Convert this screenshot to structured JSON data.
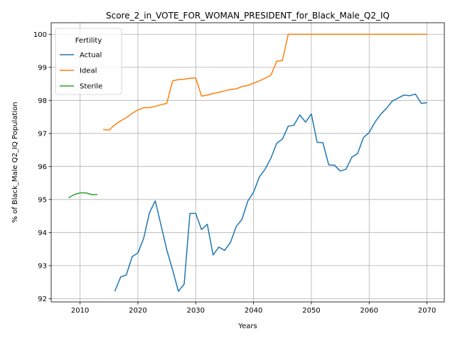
{
  "chart_data": {
    "type": "line",
    "title": "Score_2_in_VOTE_FOR_WOMAN_PRESIDENT_for_Black_Male_Q2_IQ",
    "xlabel": "Years",
    "ylabel": "% of Black_Male Q2_IQ Population",
    "xlim": [
      2005,
      2073
    ],
    "ylim": [
      91.9,
      100.35
    ],
    "xticks": [
      2010,
      2020,
      2030,
      2040,
      2050,
      2060,
      2070
    ],
    "yticks": [
      92,
      93,
      94,
      95,
      96,
      97,
      98,
      99,
      100
    ],
    "grid": true,
    "legend": {
      "title": "Fertility",
      "placement": "top-left"
    },
    "series": [
      {
        "name": "Actual",
        "color": "#1f77b4",
        "x": [
          2016,
          2017,
          2018,
          2019,
          2020,
          2021,
          2022,
          2023,
          2024,
          2025,
          2026,
          2027,
          2028,
          2029,
          2030,
          2031,
          2032,
          2033,
          2034,
          2035,
          2036,
          2037,
          2038,
          2039,
          2040,
          2041,
          2042,
          2043,
          2044,
          2045,
          2046,
          2047,
          2048,
          2049,
          2050,
          2051,
          2052,
          2053,
          2054,
          2055,
          2056,
          2057,
          2058,
          2059,
          2060,
          2061,
          2062,
          2063,
          2064,
          2065,
          2066,
          2067,
          2068,
          2069,
          2070
        ],
        "y": [
          92.22,
          92.65,
          92.72,
          93.27,
          93.38,
          93.83,
          94.6,
          94.96,
          94.22,
          93.47,
          92.87,
          92.22,
          92.44,
          94.58,
          94.58,
          94.09,
          94.25,
          93.32,
          93.56,
          93.46,
          93.7,
          94.18,
          94.4,
          94.95,
          95.22,
          95.68,
          95.92,
          96.25,
          96.7,
          96.83,
          97.22,
          97.25,
          97.56,
          97.34,
          97.59,
          96.73,
          96.72,
          96.05,
          96.04,
          95.86,
          95.92,
          96.28,
          96.39,
          96.87,
          97.03,
          97.34,
          97.58,
          97.76,
          97.98,
          98.07,
          98.16,
          98.14,
          98.19,
          97.91,
          97.93
        ]
      },
      {
        "name": "Ideal",
        "color": "#ff7f0e",
        "x": [
          2014,
          2015,
          2016,
          2017,
          2018,
          2019,
          2020,
          2021,
          2022,
          2023,
          2024,
          2025,
          2026,
          2027,
          2028,
          2029,
          2030,
          2031,
          2032,
          2033,
          2034,
          2035,
          2036,
          2037,
          2038,
          2039,
          2040,
          2041,
          2042,
          2043,
          2044,
          2045,
          2046,
          2047,
          2048,
          2049,
          2050,
          2051,
          2052,
          2053,
          2054,
          2055,
          2056,
          2057,
          2058,
          2059,
          2060,
          2061,
          2062,
          2063,
          2064,
          2065,
          2066,
          2067,
          2068,
          2069,
          2070
        ],
        "y": [
          97.12,
          97.1,
          97.26,
          97.38,
          97.48,
          97.61,
          97.71,
          97.78,
          97.78,
          97.82,
          97.87,
          97.91,
          98.59,
          98.63,
          98.64,
          98.67,
          98.68,
          98.13,
          98.16,
          98.21,
          98.24,
          98.29,
          98.33,
          98.35,
          98.42,
          98.45,
          98.52,
          98.59,
          98.67,
          98.76,
          99.18,
          99.21,
          100.0,
          100.0,
          100.0,
          100.0,
          100.0,
          100.0,
          100.0,
          100.0,
          100.0,
          100.0,
          100.0,
          100.0,
          100.0,
          100.0,
          100.0,
          100.0,
          100.0,
          100.0,
          100.0,
          100.0,
          100.0,
          100.0,
          100.0,
          100.0,
          100.0
        ]
      },
      {
        "name": "Sterile",
        "color": "#2ca02c",
        "x": [
          2008,
          2009,
          2010,
          2011,
          2012,
          2013
        ],
        "y": [
          95.05,
          95.15,
          95.2,
          95.2,
          95.15,
          95.15
        ]
      }
    ]
  }
}
